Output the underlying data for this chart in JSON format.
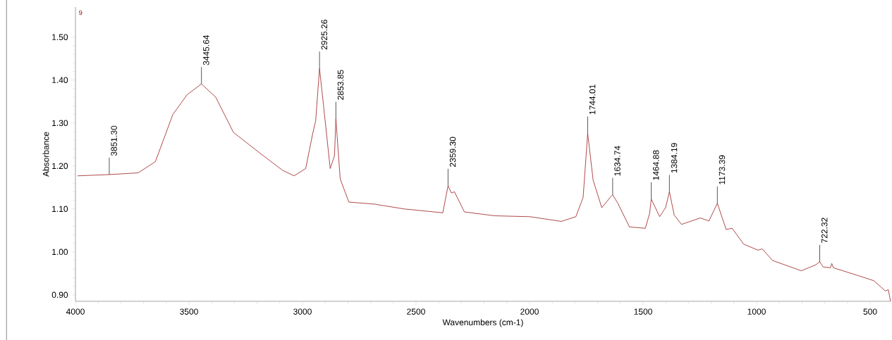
{
  "chart_data": {
    "type": "line",
    "xlabel": "Wavenumbers (cm-1)",
    "ylabel": "Absorbance",
    "xlim": [
      4000,
      410
    ],
    "ylim": [
      0.885,
      1.57
    ],
    "xticks": [
      4000,
      3500,
      3000,
      2500,
      2000,
      1500,
      1000,
      500
    ],
    "yticks": [
      {
        "value": 0.9,
        "label": "0.90"
      },
      {
        "value": 1.0,
        "label": "1.00"
      },
      {
        "value": 1.1,
        "label": "1.10"
      },
      {
        "value": 1.2,
        "label": "1.20"
      },
      {
        "value": 1.3,
        "label": "1.30"
      },
      {
        "value": 1.4,
        "label": "1.40"
      },
      {
        "value": 1.5,
        "label": "1.50"
      }
    ],
    "grid": false,
    "marker": "none",
    "line_style": "solid",
    "series": [
      {
        "color": "#9b1c1c",
        "x": [
          3991,
          3851,
          3724,
          3648,
          3571,
          3508,
          3445,
          3382,
          3304,
          3190,
          3088,
          3037,
          2986,
          2954,
          2942,
          2925,
          2903,
          2878,
          2859,
          2853,
          2834,
          2796,
          2681,
          2553,
          2382,
          2359,
          2344,
          2331,
          2287,
          2153,
          2000,
          1860,
          1796,
          1764,
          1744,
          1720,
          1682,
          1643,
          1634,
          1611,
          1560,
          1490,
          1471,
          1464,
          1427,
          1401,
          1384,
          1363,
          1331,
          1248,
          1210,
          1173,
          1134,
          1108,
          1057,
          994,
          975,
          930,
          803,
          739,
          722,
          707,
          675,
          669,
          662,
          560,
          484,
          433,
          420,
          410
        ],
        "values": [
          1.177,
          1.18,
          1.184,
          1.21,
          1.32,
          1.366,
          1.391,
          1.36,
          1.278,
          1.231,
          1.19,
          1.177,
          1.194,
          1.278,
          1.305,
          1.427,
          1.319,
          1.194,
          1.224,
          1.31,
          1.17,
          1.116,
          1.111,
          1.1,
          1.091,
          1.154,
          1.137,
          1.14,
          1.093,
          1.084,
          1.082,
          1.071,
          1.082,
          1.127,
          1.276,
          1.167,
          1.103,
          1.128,
          1.133,
          1.113,
          1.058,
          1.055,
          1.09,
          1.123,
          1.082,
          1.103,
          1.14,
          1.086,
          1.064,
          1.079,
          1.072,
          1.113,
          1.052,
          1.055,
          1.018,
          1.004,
          1.007,
          0.98,
          0.956,
          0.97,
          0.977,
          0.965,
          0.963,
          0.973,
          0.963,
          0.946,
          0.933,
          0.909,
          0.912,
          0.885
        ]
      }
    ],
    "annotations": [
      "9",
      {
        "text": "3851.30",
        "x": 3851,
        "y": 1.18
      },
      {
        "text": "3445.64",
        "x": 3445,
        "y": 1.391
      },
      {
        "text": "2925.26",
        "x": 2925,
        "y": 1.427
      },
      {
        "text": "2853.85",
        "x": 2853,
        "y": 1.31
      },
      {
        "text": "2359.30",
        "x": 2359,
        "y": 1.154
      },
      {
        "text": "1744.01",
        "x": 1744,
        "y": 1.276
      },
      {
        "text": "1634.74",
        "x": 1634,
        "y": 1.133
      },
      {
        "text": "1464.88",
        "x": 1464,
        "y": 1.123
      },
      {
        "text": "1384.19",
        "x": 1384,
        "y": 1.14
      },
      {
        "text": "1173.39",
        "x": 1173,
        "y": 1.113
      },
      {
        "text": "722.32",
        "x": 722,
        "y": 0.977
      }
    ]
  }
}
